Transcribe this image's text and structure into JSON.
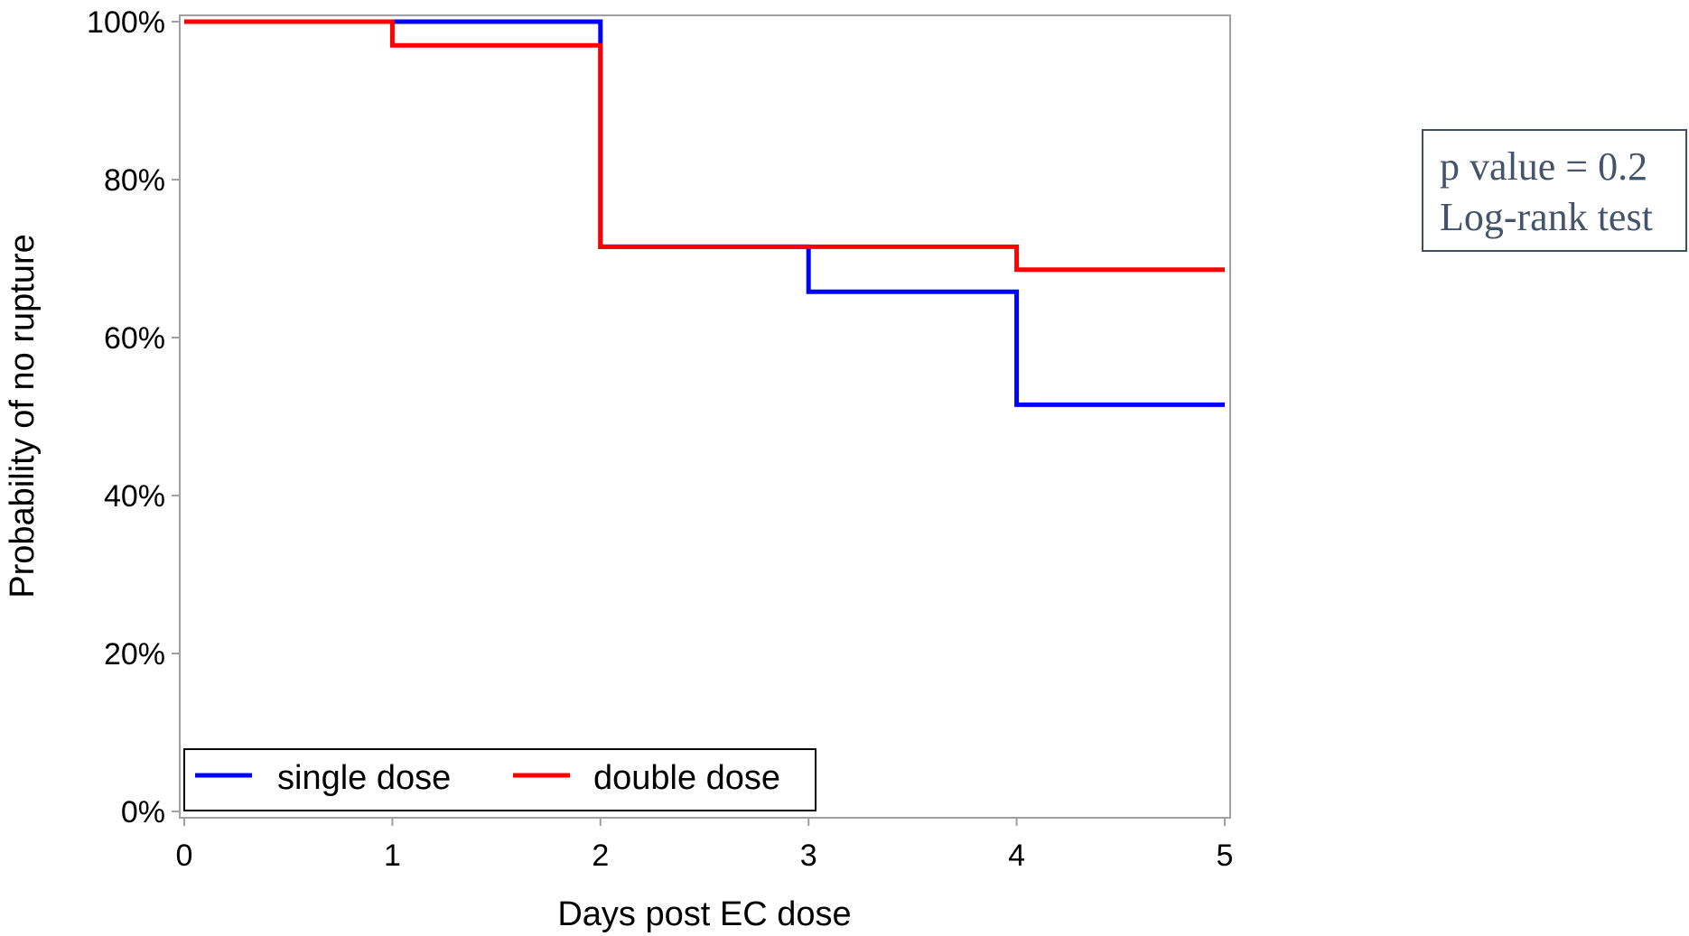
{
  "chart_data": {
    "type": "line",
    "xlabel": "Days post EC dose",
    "ylabel": "Probability of no rupture",
    "xlim": [
      0,
      5
    ],
    "ylim": [
      0,
      100
    ],
    "x_ticks": [
      "0",
      "1",
      "2",
      "3",
      "4",
      "5"
    ],
    "y_ticks": [
      "0%",
      "20%",
      "40%",
      "60%",
      "80%",
      "100%"
    ],
    "step": true,
    "grid": false,
    "legend_position": "bottom-left",
    "series": [
      {
        "name": "single dose",
        "color": "#0000ff",
        "x": [
          0,
          1,
          2,
          3,
          4,
          5
        ],
        "y": [
          100,
          100,
          71.5,
          65.8,
          51.5,
          51.5
        ]
      },
      {
        "name": "double dose",
        "color": "#ff0000",
        "x": [
          0,
          1,
          2,
          3,
          4,
          5
        ],
        "y": [
          100,
          97,
          71.5,
          71.5,
          68.6,
          68.6
        ]
      }
    ]
  },
  "stats_box": {
    "line1": "p value = 0.2",
    "line2": "Log-rank test"
  }
}
